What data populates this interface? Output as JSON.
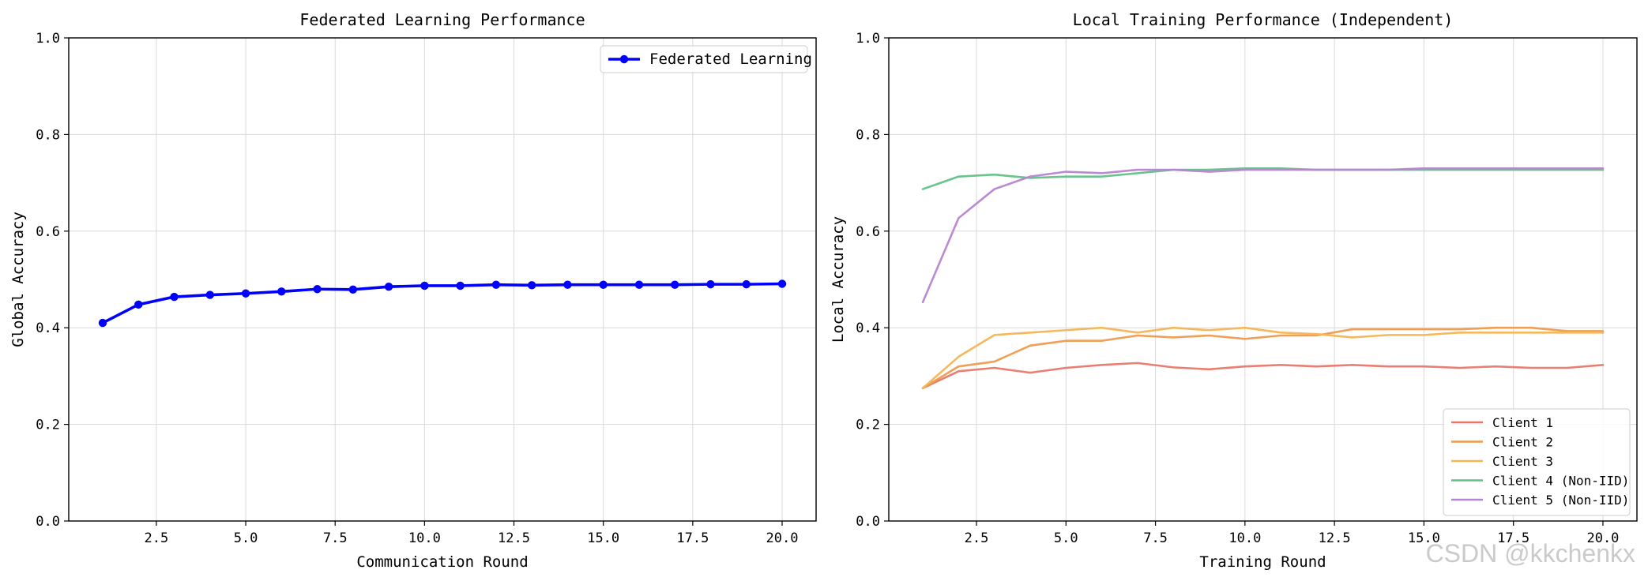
{
  "watermark": "CSDN @kkchenkx",
  "chart_data": [
    {
      "type": "line",
      "title": "Federated Learning Performance",
      "xlabel": "Communication Round",
      "ylabel": "Global Accuracy",
      "xlim": [
        0.05,
        20.95
      ],
      "ylim": [
        0,
        1.0
      ],
      "xticks": [
        2.5,
        5.0,
        7.5,
        10.0,
        12.5,
        15.0,
        17.5,
        20.0
      ],
      "xtick_labels": [
        "2.5",
        "5.0",
        "7.5",
        "10.0",
        "12.5",
        "15.0",
        "17.5",
        "20.0"
      ],
      "yticks": [
        0,
        0.2,
        0.4,
        0.6,
        0.8,
        1.0
      ],
      "ytick_labels": [
        "0.0",
        "0.2",
        "0.4",
        "0.6",
        "0.8",
        "1.0"
      ],
      "grid": true,
      "legend_position": "top-right",
      "x": [
        1,
        2,
        3,
        4,
        5,
        6,
        7,
        8,
        9,
        10,
        11,
        12,
        13,
        14,
        15,
        16,
        17,
        18,
        19,
        20
      ],
      "series": [
        {
          "name": "Federated Learning",
          "color": "#0000ff",
          "marker": "circle",
          "values": [
            0.41,
            0.448,
            0.464,
            0.468,
            0.471,
            0.475,
            0.48,
            0.479,
            0.485,
            0.487,
            0.487,
            0.489,
            0.488,
            0.489,
            0.489,
            0.489,
            0.489,
            0.49,
            0.49,
            0.491
          ]
        }
      ]
    },
    {
      "type": "line",
      "title": "Local Training Performance (Independent)",
      "xlabel": "Training Round",
      "ylabel": "Local Accuracy",
      "xlim": [
        0.05,
        20.95
      ],
      "ylim": [
        0,
        1.0
      ],
      "xticks": [
        2.5,
        5.0,
        7.5,
        10.0,
        12.5,
        15.0,
        17.5,
        20.0
      ],
      "xtick_labels": [
        "2.5",
        "5.0",
        "7.5",
        "10.0",
        "12.5",
        "15.0",
        "17.5",
        "20.0"
      ],
      "yticks": [
        0,
        0.2,
        0.4,
        0.6,
        0.8,
        1.0
      ],
      "ytick_labels": [
        "0.0",
        "0.2",
        "0.4",
        "0.6",
        "0.8",
        "1.0"
      ],
      "grid": true,
      "legend_position": "bottom-right",
      "x": [
        1,
        2,
        3,
        4,
        5,
        6,
        7,
        8,
        9,
        10,
        11,
        12,
        13,
        14,
        15,
        16,
        17,
        18,
        19,
        20
      ],
      "series": [
        {
          "name": "Client 1",
          "color": "#e8776b",
          "values": [
            0.275,
            0.31,
            0.317,
            0.307,
            0.317,
            0.323,
            0.327,
            0.318,
            0.314,
            0.32,
            0.323,
            0.32,
            0.323,
            0.32,
            0.32,
            0.317,
            0.32,
            0.317,
            0.317,
            0.323
          ]
        },
        {
          "name": "Client 2",
          "color": "#ee9a4d",
          "values": [
            0.275,
            0.32,
            0.33,
            0.363,
            0.373,
            0.373,
            0.384,
            0.38,
            0.384,
            0.377,
            0.384,
            0.384,
            0.397,
            0.397,
            0.397,
            0.397,
            0.4,
            0.4,
            0.393,
            0.393
          ]
        },
        {
          "name": "Client 3",
          "color": "#f6b453",
          "values": [
            0.275,
            0.34,
            0.385,
            0.39,
            0.395,
            0.4,
            0.39,
            0.4,
            0.395,
            0.4,
            0.39,
            0.387,
            0.38,
            0.385,
            0.385,
            0.39,
            0.39,
            0.39,
            0.39,
            0.39
          ]
        },
        {
          "name": "Client 4 (Non-IID)",
          "color": "#5fc286",
          "values": [
            0.687,
            0.713,
            0.717,
            0.71,
            0.713,
            0.713,
            0.72,
            0.727,
            0.727,
            0.73,
            0.73,
            0.727,
            0.727,
            0.727,
            0.727,
            0.727,
            0.727,
            0.727,
            0.727,
            0.727
          ]
        },
        {
          "name": "Client 5 (Non-IID)",
          "color": "#b784d0",
          "values": [
            0.453,
            0.627,
            0.687,
            0.713,
            0.723,
            0.72,
            0.727,
            0.727,
            0.723,
            0.727,
            0.727,
            0.727,
            0.727,
            0.727,
            0.73,
            0.73,
            0.73,
            0.73,
            0.73,
            0.73
          ]
        }
      ]
    }
  ]
}
